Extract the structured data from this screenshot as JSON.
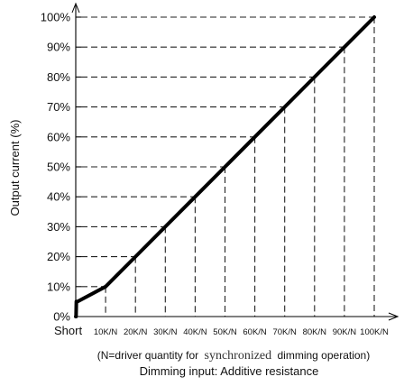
{
  "chart_data": {
    "type": "line",
    "title": "",
    "xlabel": "Dimming input: Additive resistance",
    "ylabel": "Output current (%)",
    "x_note": {
      "prefix": "(N=driver quantity for",
      "emphasis": "synchronized",
      "suffix": "dimming operation)"
    },
    "categories": [
      "Short",
      "10K/N",
      "20K/N",
      "30K/N",
      "40K/N",
      "50K/N",
      "60K/N",
      "70K/N",
      "80K/N",
      "90K/N",
      "100K/N"
    ],
    "y_ticks": [
      "0%",
      "10%",
      "20%",
      "30%",
      "40%",
      "50%",
      "60%",
      "70%",
      "80%",
      "90%",
      "100%"
    ],
    "ylim": [
      0,
      100
    ],
    "series": [
      {
        "x": [
          0,
          0.1,
          0.2,
          0.45,
          0.6,
          10,
          20,
          30,
          40,
          50,
          60,
          70,
          80,
          90,
          100
        ],
        "values": [
          0,
          0,
          5,
          5,
          5,
          10,
          20,
          30,
          40,
          50,
          60,
          70,
          80,
          90,
          100
        ]
      }
    ],
    "grid": "dashed guide lines to each labeled point",
    "colors": {
      "line": "#000000",
      "guide": "#222222",
      "axis": "#000000"
    }
  }
}
